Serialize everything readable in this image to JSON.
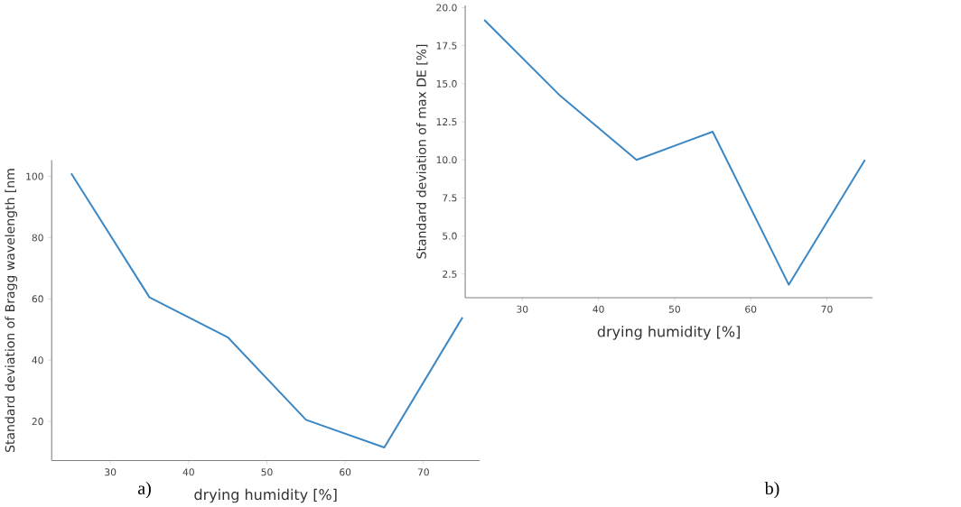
{
  "chart_data": [
    {
      "type": "line",
      "xlabel": "drying humidity [%]",
      "ylabel": "Standard deviation of Bragg wavelength [nm",
      "x": [
        25,
        35,
        45,
        55,
        65,
        75
      ],
      "series": [
        {
          "color": "#3b87c4",
          "values": [
            101,
            60.5,
            47.5,
            20.5,
            11.5,
            54
          ]
        }
      ],
      "xlim": [
        22.5,
        77.2
      ],
      "ylim": [
        7.2,
        105.3
      ],
      "xticks": [
        30,
        40,
        50,
        60,
        70
      ],
      "yticks": [
        20,
        40,
        60,
        80,
        100
      ],
      "annotations": [
        "a)"
      ]
    },
    {
      "type": "line",
      "xlabel": "drying humidity [%]",
      "ylabel": "Standard deviation of max DE [%]",
      "x": [
        25,
        35,
        45,
        55,
        65,
        75
      ],
      "series": [
        {
          "color": "#3b87c4",
          "values": [
            19.2,
            14.2,
            10.0,
            11.85,
            1.8,
            10.0
          ]
        }
      ],
      "xlim": [
        22.5,
        76
      ],
      "ylim": [
        0.95,
        20.15
      ],
      "xticks": [
        30,
        40,
        50,
        60,
        70
      ],
      "yticks": [
        {
          "value": 2.5,
          "label": "2.5"
        },
        {
          "value": 5,
          "label": "5.0"
        },
        {
          "value": 7.5,
          "label": "7.5"
        },
        {
          "value": 10,
          "label": "10.0"
        },
        {
          "value": 12.5,
          "label": "12.5"
        },
        {
          "value": 15,
          "label": "15.0"
        },
        {
          "value": 17.5,
          "label": "17.5"
        },
        {
          "value": 20,
          "label": "20.0"
        }
      ],
      "annotations": [
        "b)"
      ]
    }
  ]
}
